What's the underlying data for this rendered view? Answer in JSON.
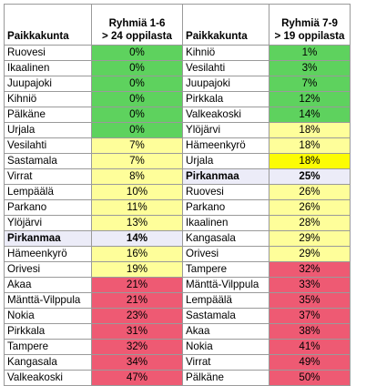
{
  "colors": {
    "green": "#5ed25e",
    "yellow": "#fefe9a",
    "red": "#ee5a73",
    "lavender": "#ececf8",
    "bright_yellow": "#fcfc04",
    "white": "#ffffff"
  },
  "header": {
    "left_name": "Paikkakunta",
    "left_group_line1": "Ryhmiä 1-6",
    "left_group_line2": "> 24 oppilasta",
    "right_name": "Paikkakunta",
    "right_group_line1": "Ryhmiä 7-9",
    "right_group_line2": "> 19 oppilasta"
  },
  "rows": [
    {
      "left_name": "Ruovesi",
      "left_pct": "0%",
      "left_color": "green",
      "left_bold": false,
      "right_name": "Kihniö",
      "right_pct": "1%",
      "right_color": "green",
      "right_bold": false
    },
    {
      "left_name": "Ikaalinen",
      "left_pct": "0%",
      "left_color": "green",
      "left_bold": false,
      "right_name": "Vesilahti",
      "right_pct": "3%",
      "right_color": "green",
      "right_bold": false
    },
    {
      "left_name": "Juupajoki",
      "left_pct": "0%",
      "left_color": "green",
      "left_bold": false,
      "right_name": "Juupajoki",
      "right_pct": "7%",
      "right_color": "green",
      "right_bold": false
    },
    {
      "left_name": "Kihniö",
      "left_pct": "0%",
      "left_color": "green",
      "left_bold": false,
      "right_name": "Pirkkala",
      "right_pct": "12%",
      "right_color": "green",
      "right_bold": false
    },
    {
      "left_name": "Pälkäne",
      "left_pct": "0%",
      "left_color": "green",
      "left_bold": false,
      "right_name": "Valkeakoski",
      "right_pct": "14%",
      "right_color": "green",
      "right_bold": false
    },
    {
      "left_name": "Urjala",
      "left_pct": "0%",
      "left_color": "green",
      "left_bold": false,
      "right_name": "Ylöjärvi",
      "right_pct": "18%",
      "right_color": "yellow",
      "right_bold": false
    },
    {
      "left_name": "Vesilahti",
      "left_pct": "7%",
      "left_color": "yellow",
      "left_bold": false,
      "right_name": "Hämeenkyrö",
      "right_pct": "18%",
      "right_color": "yellow",
      "right_bold": false
    },
    {
      "left_name": "Sastamala",
      "left_pct": "7%",
      "left_color": "yellow",
      "left_bold": false,
      "right_name": "Urjala",
      "right_pct": "18%",
      "right_color": "bright_yellow",
      "right_bold": false
    },
    {
      "left_name": "Virrat",
      "left_pct": "8%",
      "left_color": "yellow",
      "left_bold": false,
      "right_name": "Pirkanmaa",
      "right_pct": "25%",
      "right_color": "lavender",
      "right_bold": true
    },
    {
      "left_name": "Lempäälä",
      "left_pct": "10%",
      "left_color": "yellow",
      "left_bold": false,
      "right_name": "Ruovesi",
      "right_pct": "26%",
      "right_color": "yellow",
      "right_bold": false
    },
    {
      "left_name": "Parkano",
      "left_pct": "11%",
      "left_color": "yellow",
      "left_bold": false,
      "right_name": "Parkano",
      "right_pct": "26%",
      "right_color": "yellow",
      "right_bold": false
    },
    {
      "left_name": "Ylöjärvi",
      "left_pct": "13%",
      "left_color": "yellow",
      "left_bold": false,
      "right_name": "Ikaalinen",
      "right_pct": "28%",
      "right_color": "yellow",
      "right_bold": false
    },
    {
      "left_name": "Pirkanmaa",
      "left_pct": "14%",
      "left_color": "lavender",
      "left_bold": true,
      "right_name": "Kangasala",
      "right_pct": "29%",
      "right_color": "yellow",
      "right_bold": false
    },
    {
      "left_name": "Hämeenkyrö",
      "left_pct": "16%",
      "left_color": "yellow",
      "left_bold": false,
      "right_name": "Orivesi",
      "right_pct": "29%",
      "right_color": "yellow",
      "right_bold": false
    },
    {
      "left_name": "Orivesi",
      "left_pct": "19%",
      "left_color": "yellow",
      "left_bold": false,
      "right_name": "Tampere",
      "right_pct": "32%",
      "right_color": "red",
      "right_bold": false
    },
    {
      "left_name": "Akaa",
      "left_pct": "21%",
      "left_color": "red",
      "left_bold": false,
      "right_name": "Mänttä-Vilppula",
      "right_pct": "33%",
      "right_color": "red",
      "right_bold": false
    },
    {
      "left_name": "Mänttä-Vilppula",
      "left_pct": "21%",
      "left_color": "red",
      "left_bold": false,
      "right_name": "Lempäälä",
      "right_pct": "35%",
      "right_color": "red",
      "right_bold": false
    },
    {
      "left_name": "Nokia",
      "left_pct": "23%",
      "left_color": "red",
      "left_bold": false,
      "right_name": "Sastamala",
      "right_pct": "37%",
      "right_color": "red",
      "right_bold": false
    },
    {
      "left_name": "Pirkkala",
      "left_pct": "31%",
      "left_color": "red",
      "left_bold": false,
      "right_name": "Akaa",
      "right_pct": "38%",
      "right_color": "red",
      "right_bold": false
    },
    {
      "left_name": "Tampere",
      "left_pct": "32%",
      "left_color": "red",
      "left_bold": false,
      "right_name": "Nokia",
      "right_pct": "41%",
      "right_color": "red",
      "right_bold": false
    },
    {
      "left_name": "Kangasala",
      "left_pct": "34%",
      "left_color": "red",
      "left_bold": false,
      "right_name": "Virrat",
      "right_pct": "49%",
      "right_color": "red",
      "right_bold": false
    },
    {
      "left_name": "Valkeakoski",
      "left_pct": "47%",
      "left_color": "red",
      "left_bold": false,
      "right_name": "Pälkäne",
      "right_pct": "50%",
      "right_color": "red",
      "right_bold": false
    }
  ]
}
